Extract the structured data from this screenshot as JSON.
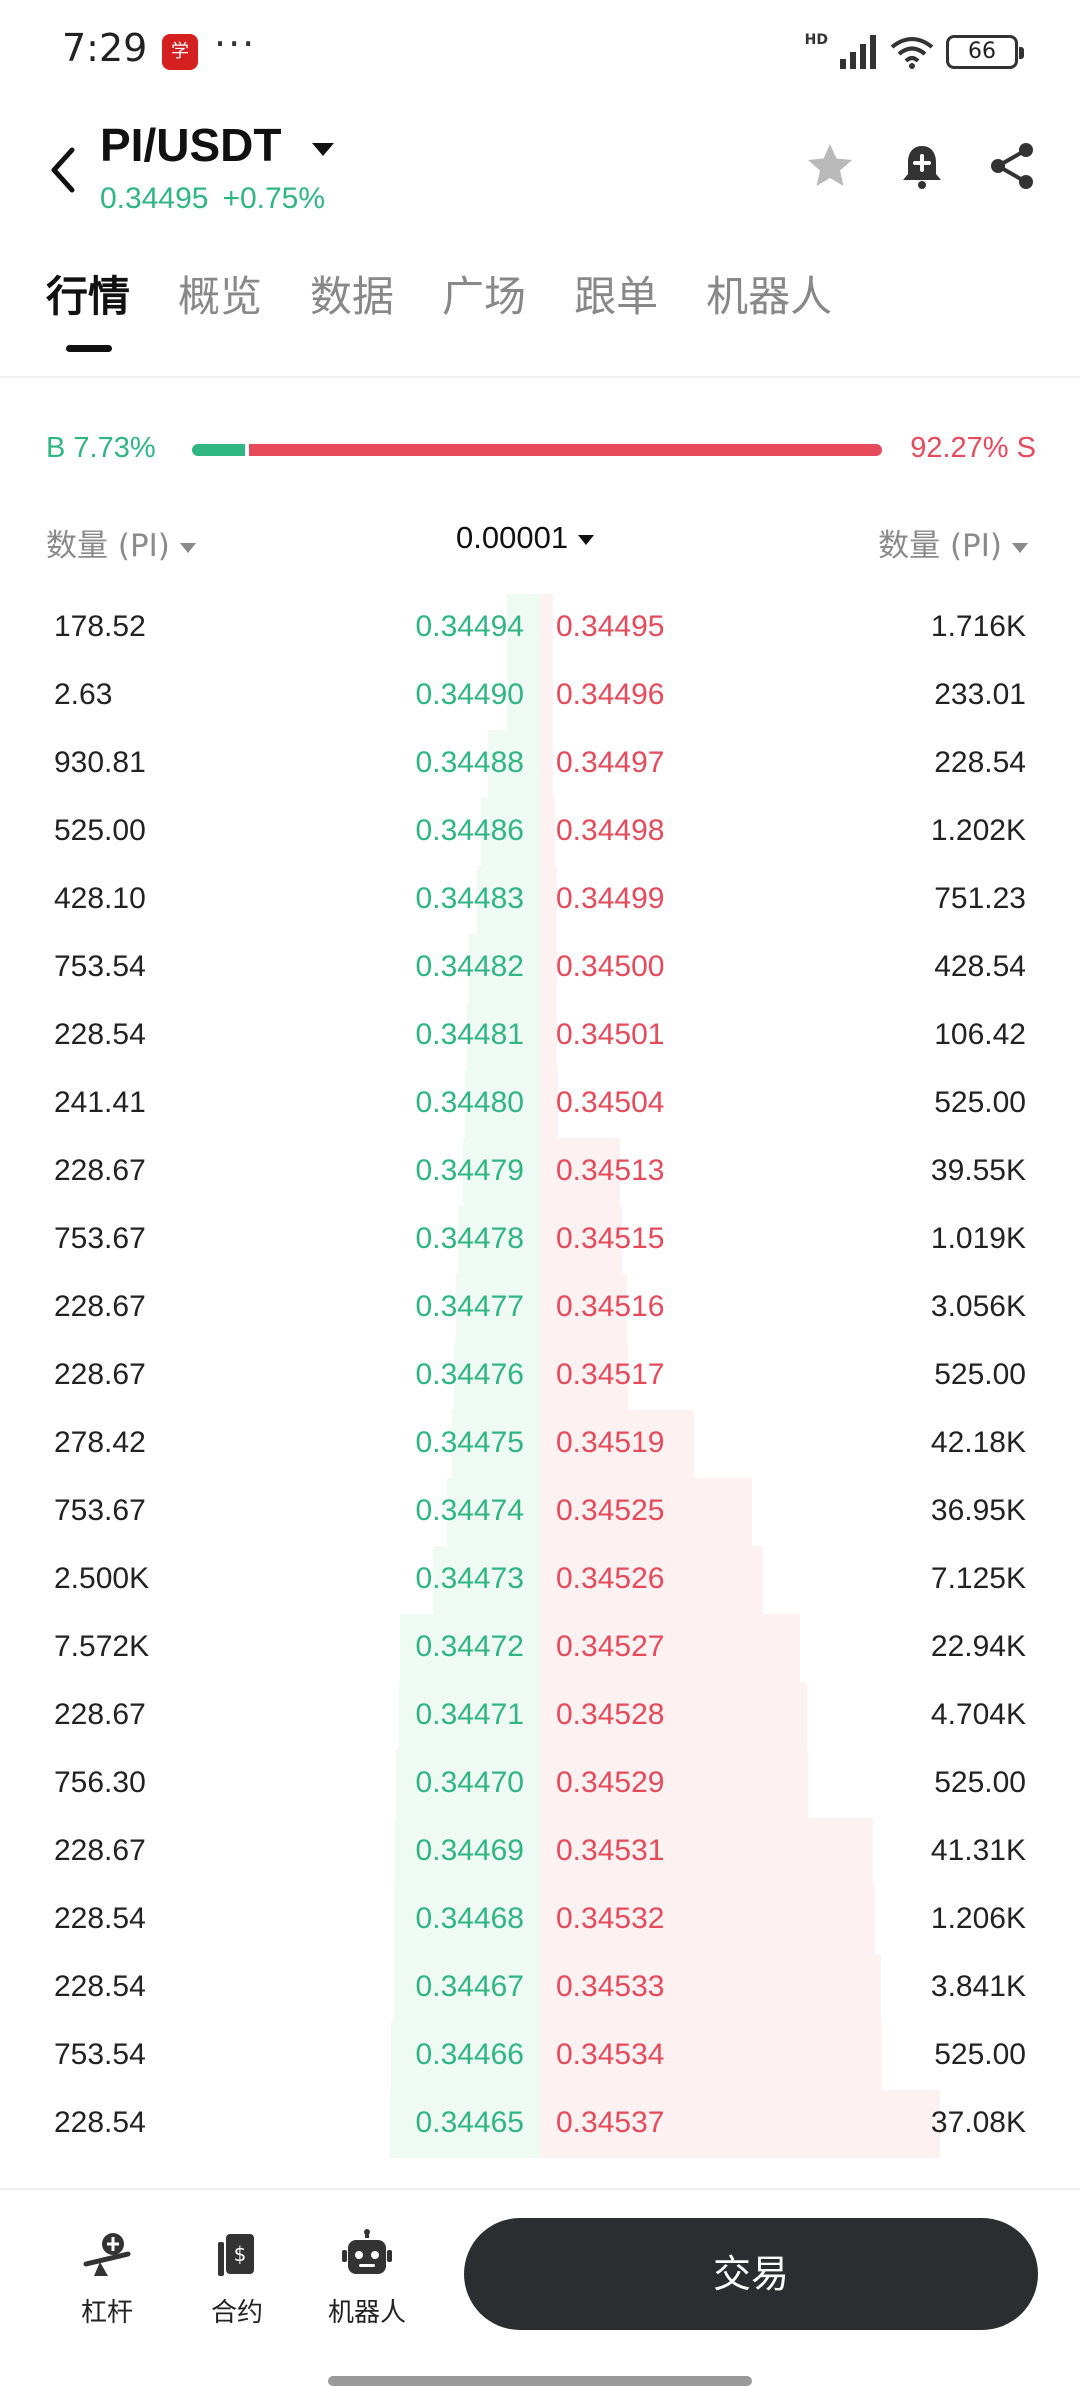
{
  "status_bar": {
    "time": "7:29",
    "app_icon_glyph": "学",
    "dots": "···",
    "network_label": "HD",
    "battery": "66"
  },
  "header": {
    "pair": "PI/USDT",
    "last_price": "0.34495",
    "change": "+0.75%"
  },
  "tabs": [
    "行情",
    "概览",
    "数据",
    "广场",
    "跟单",
    "机器人"
  ],
  "ratio": {
    "buy_label": "B 7.73%",
    "sell_label": "92.27% S",
    "buy_fraction": 0.0773
  },
  "columns": {
    "left": "数量 (PI)",
    "precision": "0.00001",
    "right": "数量 (PI)"
  },
  "order_book": [
    {
      "bid_qty": "178.52",
      "bid_price": "0.34494",
      "ask_price": "0.34495",
      "ask_qty": "1.716K"
    },
    {
      "bid_qty": "2.63",
      "bid_price": "0.34490",
      "ask_price": "0.34496",
      "ask_qty": "233.01"
    },
    {
      "bid_qty": "930.81",
      "bid_price": "0.34488",
      "ask_price": "0.34497",
      "ask_qty": "228.54"
    },
    {
      "bid_qty": "525.00",
      "bid_price": "0.34486",
      "ask_price": "0.34498",
      "ask_qty": "1.202K"
    },
    {
      "bid_qty": "428.10",
      "bid_price": "0.34483",
      "ask_price": "0.34499",
      "ask_qty": "751.23"
    },
    {
      "bid_qty": "753.54",
      "bid_price": "0.34482",
      "ask_price": "0.34500",
      "ask_qty": "428.54"
    },
    {
      "bid_qty": "228.54",
      "bid_price": "0.34481",
      "ask_price": "0.34501",
      "ask_qty": "106.42"
    },
    {
      "bid_qty": "241.41",
      "bid_price": "0.34480",
      "ask_price": "0.34504",
      "ask_qty": "525.00"
    },
    {
      "bid_qty": "228.67",
      "bid_price": "0.34479",
      "ask_price": "0.34513",
      "ask_qty": "39.55K"
    },
    {
      "bid_qty": "753.67",
      "bid_price": "0.34478",
      "ask_price": "0.34515",
      "ask_qty": "1.019K"
    },
    {
      "bid_qty": "228.67",
      "bid_price": "0.34477",
      "ask_price": "0.34516",
      "ask_qty": "3.056K"
    },
    {
      "bid_qty": "228.67",
      "bid_price": "0.34476",
      "ask_price": "0.34517",
      "ask_qty": "525.00"
    },
    {
      "bid_qty": "278.42",
      "bid_price": "0.34475",
      "ask_price": "0.34519",
      "ask_qty": "42.18K"
    },
    {
      "bid_qty": "753.67",
      "bid_price": "0.34474",
      "ask_price": "0.34525",
      "ask_qty": "36.95K"
    },
    {
      "bid_qty": "2.500K",
      "bid_price": "0.34473",
      "ask_price": "0.34526",
      "ask_qty": "7.125K"
    },
    {
      "bid_qty": "7.572K",
      "bid_price": "0.34472",
      "ask_price": "0.34527",
      "ask_qty": "22.94K"
    },
    {
      "bid_qty": "228.67",
      "bid_price": "0.34471",
      "ask_price": "0.34528",
      "ask_qty": "4.704K"
    },
    {
      "bid_qty": "756.30",
      "bid_price": "0.34470",
      "ask_price": "0.34529",
      "ask_qty": "525.00"
    },
    {
      "bid_qty": "228.67",
      "bid_price": "0.34469",
      "ask_price": "0.34531",
      "ask_qty": "41.31K"
    },
    {
      "bid_qty": "228.54",
      "bid_price": "0.34468",
      "ask_price": "0.34532",
      "ask_qty": "1.206K"
    },
    {
      "bid_qty": "228.54",
      "bid_price": "0.34467",
      "ask_price": "0.34533",
      "ask_qty": "3.841K"
    },
    {
      "bid_qty": "753.54",
      "bid_price": "0.34466",
      "ask_price": "0.34534",
      "ask_qty": "525.00"
    },
    {
      "bid_qty": "228.54",
      "bid_price": "0.34465",
      "ask_price": "0.34537",
      "ask_qty": "37.08K"
    }
  ],
  "bottom_nav": {
    "items": [
      {
        "label": "杠杆",
        "icon": "leverage-icon"
      },
      {
        "label": "合约",
        "icon": "contract-icon"
      },
      {
        "label": "机器人",
        "icon": "robot-icon"
      }
    ],
    "trade_label": "交易"
  },
  "colors": {
    "buy": "#2fb682",
    "sell": "#e64a5b",
    "buy_depth": "#f0faf5",
    "sell_depth": "#fdf1f1",
    "trade_button": "#2b2d31"
  }
}
